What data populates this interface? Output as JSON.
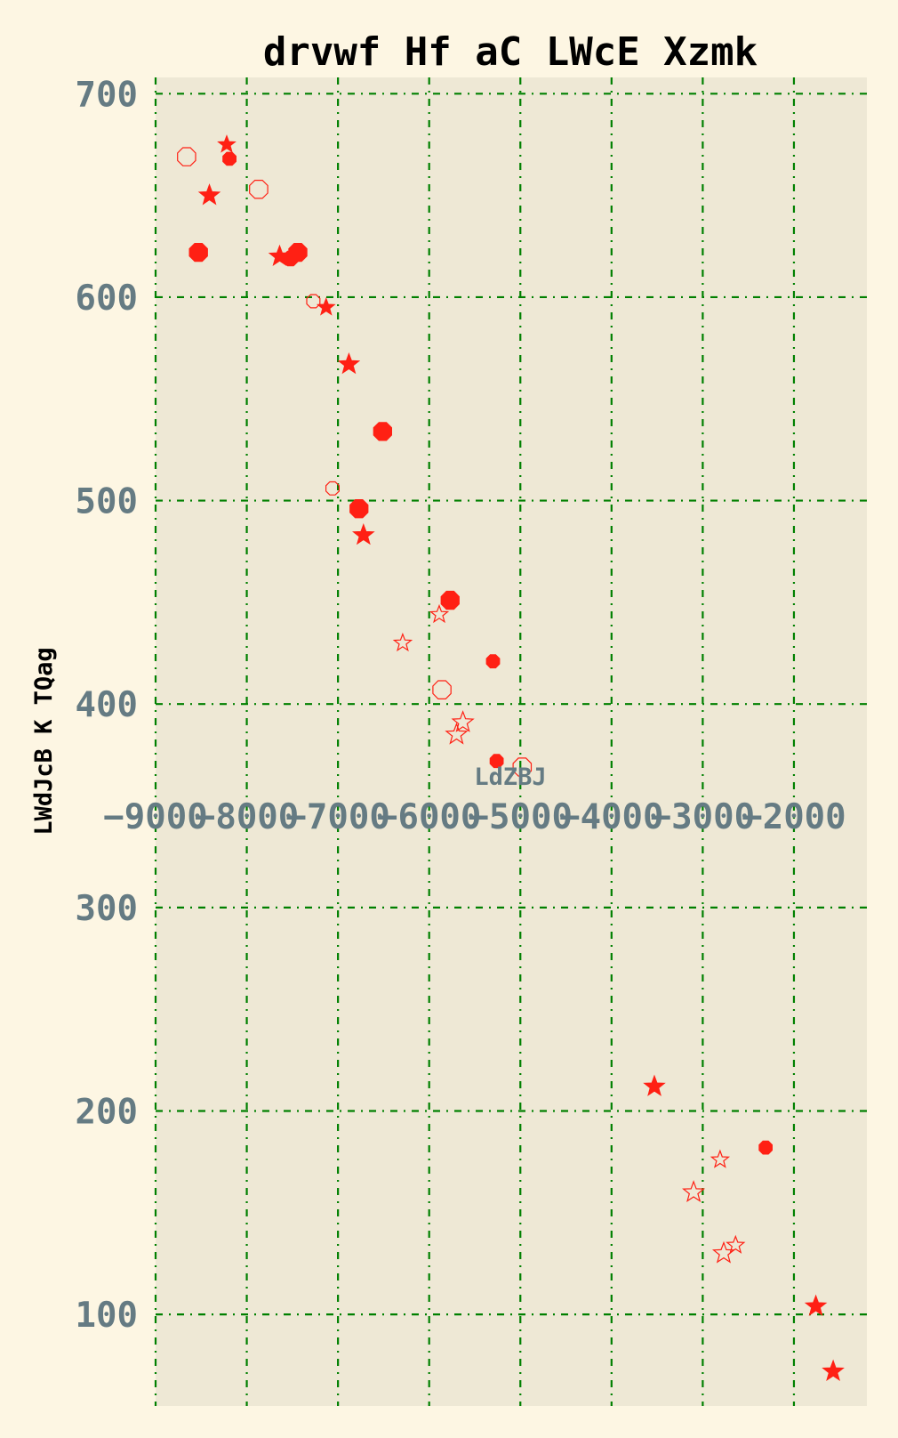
{
  "chart_data": {
    "type": "scatter",
    "title": "drvwf Hf aC LWcE Xzmk",
    "xlabel": "LdZBJ",
    "ylabel": "LWdJcB K TQag",
    "xlim": [
      -9000,
      -1200
    ],
    "ylim": [
      55,
      708
    ],
    "x_ticks": [
      -9000,
      -8000,
      -7000,
      -6000,
      -5000,
      -4000,
      -3000,
      -2000
    ],
    "x_tick_labels": [
      "−9000",
      "−8000",
      "−7000",
      "−6000",
      "−5000",
      "−4000",
      "−3000",
      "−2000"
    ],
    "y_ticks": [
      100,
      200,
      300,
      400,
      500,
      600,
      700
    ],
    "y_tick_labels": [
      "100",
      "200",
      "300",
      "400",
      "500",
      "600",
      "700"
    ],
    "grid": true,
    "colors": {
      "background": "#fdf6e3",
      "plot_background": "#eee8d5",
      "grid": "#008000",
      "marker": "#ff2014",
      "tick_text": "#657b83"
    },
    "points": [
      {
        "x": -8660,
        "y": 669,
        "marker": "octagon-open",
        "size": 11
      },
      {
        "x": -8220,
        "y": 675,
        "marker": "star-filled",
        "size": 10
      },
      {
        "x": -8190,
        "y": 668,
        "marker": "octagon-filled",
        "size": 8
      },
      {
        "x": -8410,
        "y": 650,
        "marker": "star-filled",
        "size": 12
      },
      {
        "x": -7870,
        "y": 653,
        "marker": "octagon-open",
        "size": 11
      },
      {
        "x": -8530,
        "y": 622,
        "marker": "octagon-filled",
        "size": 11
      },
      {
        "x": -7640,
        "y": 620,
        "marker": "star-filled",
        "size": 12
      },
      {
        "x": -7520,
        "y": 619,
        "marker": "octagon-filled",
        "size": 9
      },
      {
        "x": -7440,
        "y": 622,
        "marker": "octagon-filled",
        "size": 11
      },
      {
        "x": -7270,
        "y": 598,
        "marker": "octagon-open",
        "size": 8
      },
      {
        "x": -7130,
        "y": 595,
        "marker": "star-filled",
        "size": 10
      },
      {
        "x": -6880,
        "y": 567,
        "marker": "star-filled",
        "size": 12
      },
      {
        "x": -6510,
        "y": 534,
        "marker": "octagon-filled",
        "size": 11
      },
      {
        "x": -7060,
        "y": 506,
        "marker": "octagon-open",
        "size": 8
      },
      {
        "x": -6770,
        "y": 496,
        "marker": "octagon-filled",
        "size": 11
      },
      {
        "x": -6720,
        "y": 483,
        "marker": "star-filled",
        "size": 12
      },
      {
        "x": -5770,
        "y": 451,
        "marker": "octagon-filled",
        "size": 11
      },
      {
        "x": -5890,
        "y": 444,
        "marker": "star-open",
        "size": 10
      },
      {
        "x": -6290,
        "y": 430,
        "marker": "star-open",
        "size": 10
      },
      {
        "x": -5300,
        "y": 421,
        "marker": "octagon-filled",
        "size": 8
      },
      {
        "x": -5860,
        "y": 407,
        "marker": "octagon-open",
        "size": 11
      },
      {
        "x": -5630,
        "y": 391,
        "marker": "star-open",
        "size": 12
      },
      {
        "x": -5700,
        "y": 385,
        "marker": "star-open",
        "size": 12
      },
      {
        "x": -5260,
        "y": 372,
        "marker": "octagon-filled",
        "size": 8
      },
      {
        "x": -4980,
        "y": 369,
        "marker": "octagon-open",
        "size": 11
      },
      {
        "x": -3530,
        "y": 212,
        "marker": "star-filled",
        "size": 12
      },
      {
        "x": -2310,
        "y": 182,
        "marker": "octagon-filled",
        "size": 8
      },
      {
        "x": -2810,
        "y": 176,
        "marker": "star-open",
        "size": 10
      },
      {
        "x": -3100,
        "y": 160,
        "marker": "star-open",
        "size": 12
      },
      {
        "x": -2640,
        "y": 134,
        "marker": "star-open",
        "size": 10
      },
      {
        "x": -2770,
        "y": 130,
        "marker": "star-open",
        "size": 12
      },
      {
        "x": -1760,
        "y": 104,
        "marker": "star-filled",
        "size": 12
      },
      {
        "x": -1570,
        "y": 72,
        "marker": "star-filled",
        "size": 12
      }
    ]
  }
}
